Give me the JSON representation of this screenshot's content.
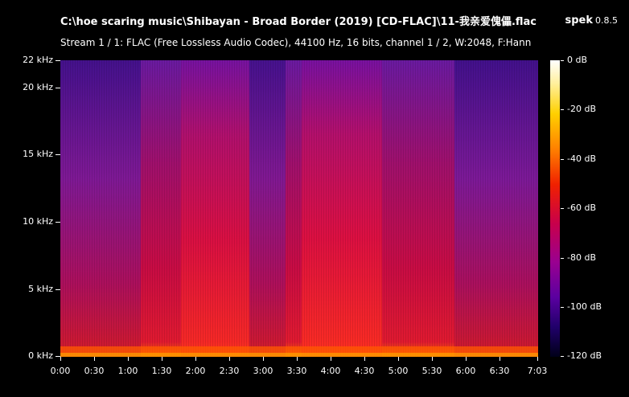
{
  "window": {
    "file_title": "C:\\hoe scaring music\\Shibayan - Broad Border (2019) [CD-FLAC]\\11-我亲爱傀儡.flac",
    "app_name": "spek",
    "app_version": "0.8.5",
    "stream_info": "Stream 1 / 1: FLAC (Free Lossless Audio Codec), 44100 Hz, 16 bits, channel 1 / 2, W:2048, F:Hann"
  },
  "frequency_axis": {
    "labels": [
      "22 kHz",
      "20 kHz",
      "15 kHz",
      "10 kHz",
      "5 kHz",
      "0 kHz"
    ]
  },
  "time_axis": {
    "labels": [
      "0:00",
      "0:30",
      "1:00",
      "1:30",
      "2:00",
      "2:30",
      "3:00",
      "3:30",
      "4:00",
      "4:30",
      "5:00",
      "5:30",
      "6:00",
      "6:30",
      "7:03"
    ]
  },
  "db_scale": {
    "labels": [
      "0 dB",
      "-20 dB",
      "-40 dB",
      "-60 dB",
      "-80 dB",
      "-100 dB",
      "-120 dB"
    ]
  },
  "colors": {
    "background": "#000000",
    "high": "#ffffff",
    "mid": "#e0103a",
    "low": "#3a0080"
  }
}
